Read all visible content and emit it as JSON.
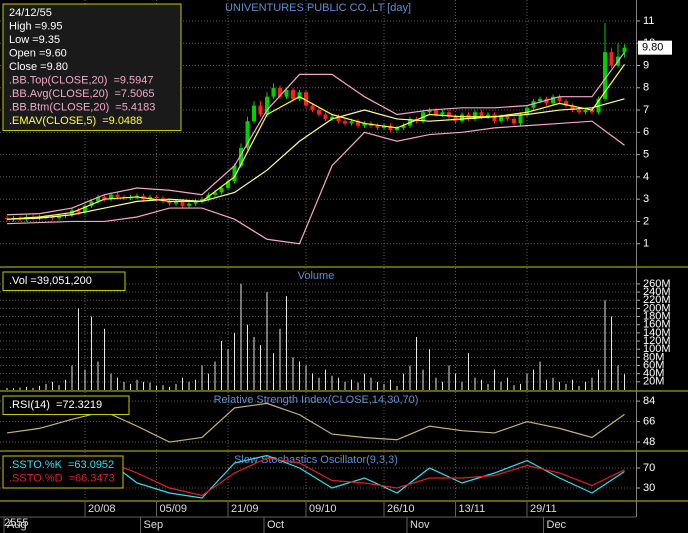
{
  "chart_data": [
    {
      "type": "candlestick",
      "title": "UNIVENTURES PUBLIC CO.,LT [day]",
      "year_label": "2555",
      "last_label": "9.80",
      "info": [
        "24/12/55",
        "High  =9.95",
        "Low   =9.35",
        "Open  =9.60",
        "Close =9.80"
      ],
      "up_color": "#00d000",
      "down_color": "#ff2020",
      "categories": [
        null,
        null,
        null,
        null,
        null,
        null,
        null,
        null,
        null,
        null,
        null,
        null,
        "20/08",
        null,
        null,
        null,
        null,
        null,
        null,
        null,
        null,
        null,
        null,
        "05/09",
        null,
        null,
        null,
        null,
        null,
        null,
        null,
        null,
        null,
        null,
        "21/09",
        null,
        null,
        null,
        null,
        null,
        null,
        null,
        null,
        null,
        null,
        null,
        "09/10",
        null,
        null,
        null,
        null,
        null,
        null,
        null,
        null,
        null,
        null,
        null,
        "26/10",
        null,
        null,
        null,
        null,
        null,
        null,
        null,
        null,
        null,
        null,
        "13/11",
        null,
        null,
        null,
        null,
        null,
        null,
        null,
        null,
        null,
        null,
        "29/11",
        null,
        null,
        null,
        null,
        null,
        null,
        null,
        null,
        null,
        null,
        null,
        null,
        null,
        null,
        null
      ],
      "months": [
        "Aug",
        null,
        null,
        null,
        null,
        null,
        null,
        null,
        null,
        null,
        null,
        null,
        null,
        null,
        null,
        null,
        null,
        null,
        null,
        null,
        null,
        "Sep",
        null,
        null,
        null,
        null,
        null,
        null,
        null,
        null,
        null,
        null,
        null,
        null,
        null,
        null,
        null,
        null,
        null,
        null,
        "Oct",
        null,
        null,
        null,
        null,
        null,
        null,
        null,
        null,
        null,
        null,
        null,
        null,
        null,
        null,
        null,
        null,
        null,
        null,
        null,
        null,
        null,
        "Nov",
        null,
        null,
        null,
        null,
        null,
        null,
        null,
        null,
        null,
        null,
        null,
        null,
        null,
        null,
        null,
        null,
        null,
        null,
        null,
        null,
        "Dec",
        null,
        null,
        null,
        null,
        null,
        null,
        null,
        null,
        null,
        null,
        null,
        null
      ],
      "open": [
        2.15,
        2.1,
        2.15,
        2.1,
        2.2,
        2.15,
        2.2,
        2.2,
        2.15,
        2.25,
        2.3,
        2.5,
        2.4,
        2.7,
        2.9,
        3.1,
        3.0,
        3.2,
        3.1,
        3.05,
        3.1,
        3.15,
        3.0,
        3.1,
        3.05,
        2.9,
        2.8,
        2.9,
        2.7,
        2.8,
        2.9,
        3.0,
        3.2,
        3.3,
        3.5,
        3.8,
        4.5,
        5.3,
        6.5,
        7.2,
        6.8,
        7.6,
        8.0,
        7.6,
        7.9,
        7.5,
        7.8,
        7.2,
        7.0,
        6.8,
        6.6,
        6.7,
        6.5,
        6.4,
        6.5,
        6.3,
        6.4,
        6.3,
        6.2,
        6.3,
        6.1,
        6.2,
        6.3,
        6.6,
        6.5,
        6.9,
        7.0,
        6.8,
        6.9,
        6.7,
        6.5,
        6.8,
        6.6,
        6.9,
        6.7,
        6.8,
        6.5,
        6.7,
        6.6,
        6.4,
        6.8,
        7.1,
        7.4,
        7.5,
        7.3,
        7.6,
        7.4,
        7.2,
        7.0,
        6.9,
        7.0,
        6.9,
        7.5,
        9.6,
        9.0,
        9.6
      ],
      "high": [
        2.25,
        2.25,
        2.25,
        2.3,
        2.3,
        2.3,
        2.3,
        2.3,
        2.35,
        2.4,
        2.6,
        2.6,
        2.8,
        3.0,
        3.2,
        3.2,
        3.3,
        3.3,
        3.2,
        3.2,
        3.25,
        3.25,
        3.2,
        3.2,
        3.15,
        3.0,
        3.0,
        3.0,
        2.9,
        3.0,
        3.1,
        3.3,
        3.4,
        3.6,
        3.9,
        4.6,
        5.5,
        6.7,
        7.4,
        7.4,
        7.8,
        8.2,
        8.1,
        8.0,
        8.0,
        7.9,
        7.9,
        7.3,
        7.1,
        6.9,
        6.8,
        6.8,
        6.6,
        6.6,
        6.6,
        6.5,
        6.5,
        6.4,
        6.4,
        6.4,
        6.3,
        6.4,
        6.7,
        6.7,
        7.0,
        7.1,
        7.1,
        7.0,
        7.0,
        6.8,
        6.9,
        6.9,
        7.0,
        7.0,
        6.9,
        6.9,
        6.8,
        6.8,
        6.7,
        6.9,
        7.2,
        7.5,
        7.6,
        7.6,
        7.7,
        7.7,
        7.5,
        7.3,
        7.1,
        7.1,
        7.1,
        7.6,
        10.9,
        9.8,
        10.0,
        9.95
      ],
      "low": [
        2.0,
        2.0,
        2.0,
        2.0,
        2.05,
        2.05,
        2.1,
        2.05,
        2.05,
        2.15,
        2.2,
        2.3,
        2.3,
        2.6,
        2.8,
        2.9,
        2.9,
        3.0,
        2.95,
        2.95,
        3.0,
        2.9,
        2.9,
        2.95,
        2.8,
        2.7,
        2.7,
        2.6,
        2.6,
        2.7,
        2.8,
        2.9,
        3.1,
        3.2,
        3.4,
        3.7,
        4.4,
        5.2,
        6.4,
        6.7,
        6.7,
        7.5,
        7.5,
        7.5,
        7.4,
        7.4,
        7.1,
        6.9,
        6.7,
        6.5,
        6.5,
        6.4,
        6.3,
        6.3,
        6.2,
        6.2,
        6.2,
        6.1,
        6.1,
        6.0,
        6.0,
        6.1,
        6.2,
        6.4,
        6.4,
        6.8,
        6.7,
        6.7,
        6.6,
        6.4,
        6.4,
        6.5,
        6.5,
        6.6,
        6.6,
        6.4,
        6.4,
        6.5,
        6.3,
        6.3,
        6.7,
        7.0,
        7.3,
        7.2,
        7.2,
        7.3,
        7.1,
        6.9,
        6.8,
        6.8,
        6.8,
        6.8,
        7.4,
        8.9,
        8.9,
        9.35
      ],
      "close": [
        2.1,
        2.15,
        2.1,
        2.2,
        2.15,
        2.2,
        2.2,
        2.15,
        2.25,
        2.3,
        2.5,
        2.4,
        2.7,
        2.9,
        3.1,
        3.0,
        3.2,
        3.1,
        3.05,
        3.1,
        3.15,
        3.0,
        3.1,
        3.05,
        2.9,
        2.8,
        2.9,
        2.7,
        2.8,
        2.9,
        3.0,
        3.2,
        3.3,
        3.5,
        3.8,
        4.5,
        5.3,
        6.5,
        7.2,
        6.8,
        7.6,
        8.0,
        7.6,
        7.9,
        7.5,
        7.8,
        7.2,
        7.0,
        6.8,
        6.6,
        6.7,
        6.5,
        6.4,
        6.5,
        6.3,
        6.4,
        6.3,
        6.2,
        6.3,
        6.1,
        6.2,
        6.3,
        6.6,
        6.5,
        6.9,
        7.0,
        6.8,
        6.9,
        6.7,
        6.5,
        6.8,
        6.6,
        6.9,
        6.7,
        6.8,
        6.5,
        6.7,
        6.6,
        6.4,
        6.8,
        7.1,
        7.4,
        7.5,
        7.3,
        7.6,
        7.4,
        7.2,
        7.0,
        6.9,
        7.0,
        6.9,
        7.5,
        9.6,
        9.0,
        9.4,
        9.8
      ],
      "x": [
        0,
        5,
        10,
        15,
        20,
        25,
        30,
        35,
        40,
        45,
        50,
        55,
        60,
        65,
        70,
        75,
        80,
        85,
        90,
        95
      ],
      "series": [
        {
          "name": ".BB.Top(CLOSE,20)",
          "label": "=9.5947",
          "color": "#f4a8c8",
          "values": [
            2.3,
            2.35,
            2.6,
            3.2,
            3.5,
            3.4,
            3.2,
            4.5,
            7.0,
            8.6,
            8.6,
            7.6,
            6.8,
            7.0,
            7.1,
            7.1,
            7.2,
            7.6,
            7.6,
            9.5947
          ]
        },
        {
          "name": ".BB.Avg(CLOSE,20)",
          "label": "=7.5065",
          "color": "#ffffa0",
          "values": [
            2.1,
            2.15,
            2.3,
            2.6,
            2.9,
            3.0,
            2.9,
            3.3,
            4.3,
            5.6,
            6.6,
            7.0,
            6.6,
            6.5,
            6.6,
            6.7,
            6.8,
            7.0,
            7.1,
            7.5065
          ]
        },
        {
          "name": ".BB.Btm(CLOSE,20)",
          "label": "=5.4183",
          "color": "#f4a8c8",
          "values": [
            1.9,
            1.95,
            2.0,
            2.0,
            2.2,
            2.6,
            2.6,
            2.1,
            1.2,
            1.0,
            4.5,
            6.0,
            5.6,
            5.9,
            6.0,
            6.2,
            6.3,
            6.4,
            6.5,
            5.4183
          ]
        },
        {
          "name": ".EMAV(CLOSE,5)",
          "label": "=9.0488",
          "color": "#ffff40",
          "values": [
            2.1,
            2.2,
            2.4,
            3.0,
            3.1,
            2.9,
            2.9,
            4.0,
            6.8,
            7.6,
            6.8,
            6.4,
            6.2,
            6.8,
            6.7,
            6.7,
            6.9,
            7.3,
            7.0,
            9.0488
          ]
        }
      ],
      "ylim": [
        0,
        11.94
      ],
      "yticks": [
        1,
        2,
        3,
        4,
        5,
        6,
        7,
        8,
        9,
        10,
        11
      ]
    },
    {
      "type": "bar",
      "title": "Volume",
      "legend_text": ".Vol  =39,051,200",
      "color": "#e8e8e8",
      "values": [
        5,
        4,
        6,
        8,
        5,
        10,
        15,
        20,
        12,
        25,
        60,
        200,
        50,
        180,
        70,
        150,
        40,
        30,
        20,
        15,
        25,
        20,
        18,
        10,
        12,
        8,
        15,
        30,
        20,
        25,
        60,
        40,
        70,
        120,
        100,
        140,
        260,
        160,
        130,
        110,
        240,
        90,
        150,
        230,
        80,
        70,
        60,
        40,
        30,
        50,
        35,
        30,
        20,
        25,
        18,
        40,
        30,
        20,
        15,
        25,
        10,
        40,
        60,
        130,
        50,
        100,
        30,
        20,
        60,
        40,
        20,
        90,
        30,
        25,
        15,
        50,
        20,
        30,
        12,
        15,
        40,
        50,
        70,
        25,
        30,
        20,
        15,
        25,
        10,
        20,
        30,
        50,
        220,
        180,
        60,
        39.0512
      ],
      "ylim": [
        0,
        299
      ],
      "yticks": [
        {
          "value": 20,
          "label": "20M"
        },
        {
          "value": 40,
          "label": "40M"
        },
        {
          "value": 60,
          "label": "60M"
        },
        {
          "value": 80,
          "label": "80M"
        },
        {
          "value": 100,
          "label": "100M"
        },
        {
          "value": 120,
          "label": "120M"
        },
        {
          "value": 140,
          "label": "140M"
        },
        {
          "value": 160,
          "label": "160M"
        },
        {
          "value": 180,
          "label": "180M"
        },
        {
          "value": 200,
          "label": "200M"
        },
        {
          "value": 220,
          "label": "220M"
        },
        {
          "value": 240,
          "label": "240M"
        },
        {
          "value": 260,
          "label": "260M"
        }
      ]
    },
    {
      "type": "line",
      "title": "Relative Strength Index(CLOSE,14,30,70)",
      "x": [
        0,
        5,
        10,
        15,
        20,
        25,
        30,
        35,
        40,
        45,
        50,
        55,
        60,
        65,
        70,
        75,
        80,
        85,
        90,
        95
      ],
      "series": [
        {
          "name": ".RSI(14)",
          "label": "=72.3219",
          "color": "#c8b478",
          "values": [
            56,
            60,
            68,
            75,
            62,
            48,
            52,
            78,
            82,
            72,
            55,
            52,
            50,
            62,
            58,
            56,
            66,
            60,
            52,
            72.3219
          ]
        }
      ],
      "ylim": [
        41,
        92
      ],
      "yticks": [
        48,
        66,
        84
      ]
    },
    {
      "type": "line",
      "title": "Slow Stochastics Oscillator(9,3,3)",
      "x": [
        0,
        5,
        10,
        15,
        20,
        25,
        30,
        35,
        40,
        45,
        50,
        55,
        60,
        65,
        70,
        75,
        80,
        85,
        90,
        95
      ],
      "series": [
        {
          "name": ".SSTO.%K",
          "label": "=63.0952",
          "color": "#30e0f0",
          "values": [
            60,
            50,
            80,
            90,
            40,
            20,
            10,
            80,
            95,
            70,
            30,
            50,
            20,
            70,
            40,
            60,
            85,
            50,
            20,
            63.0952
          ]
        },
        {
          "name": ".SSTO.%D",
          "label": "=66.3473",
          "color": "#e02020",
          "values": [
            55,
            55,
            70,
            85,
            60,
            30,
            15,
            60,
            90,
            80,
            45,
            40,
            30,
            50,
            50,
            55,
            75,
            60,
            35,
            66.3473
          ]
        }
      ],
      "ylim": [
        6,
        102
      ],
      "yticks": [
        30,
        70
      ]
    }
  ]
}
